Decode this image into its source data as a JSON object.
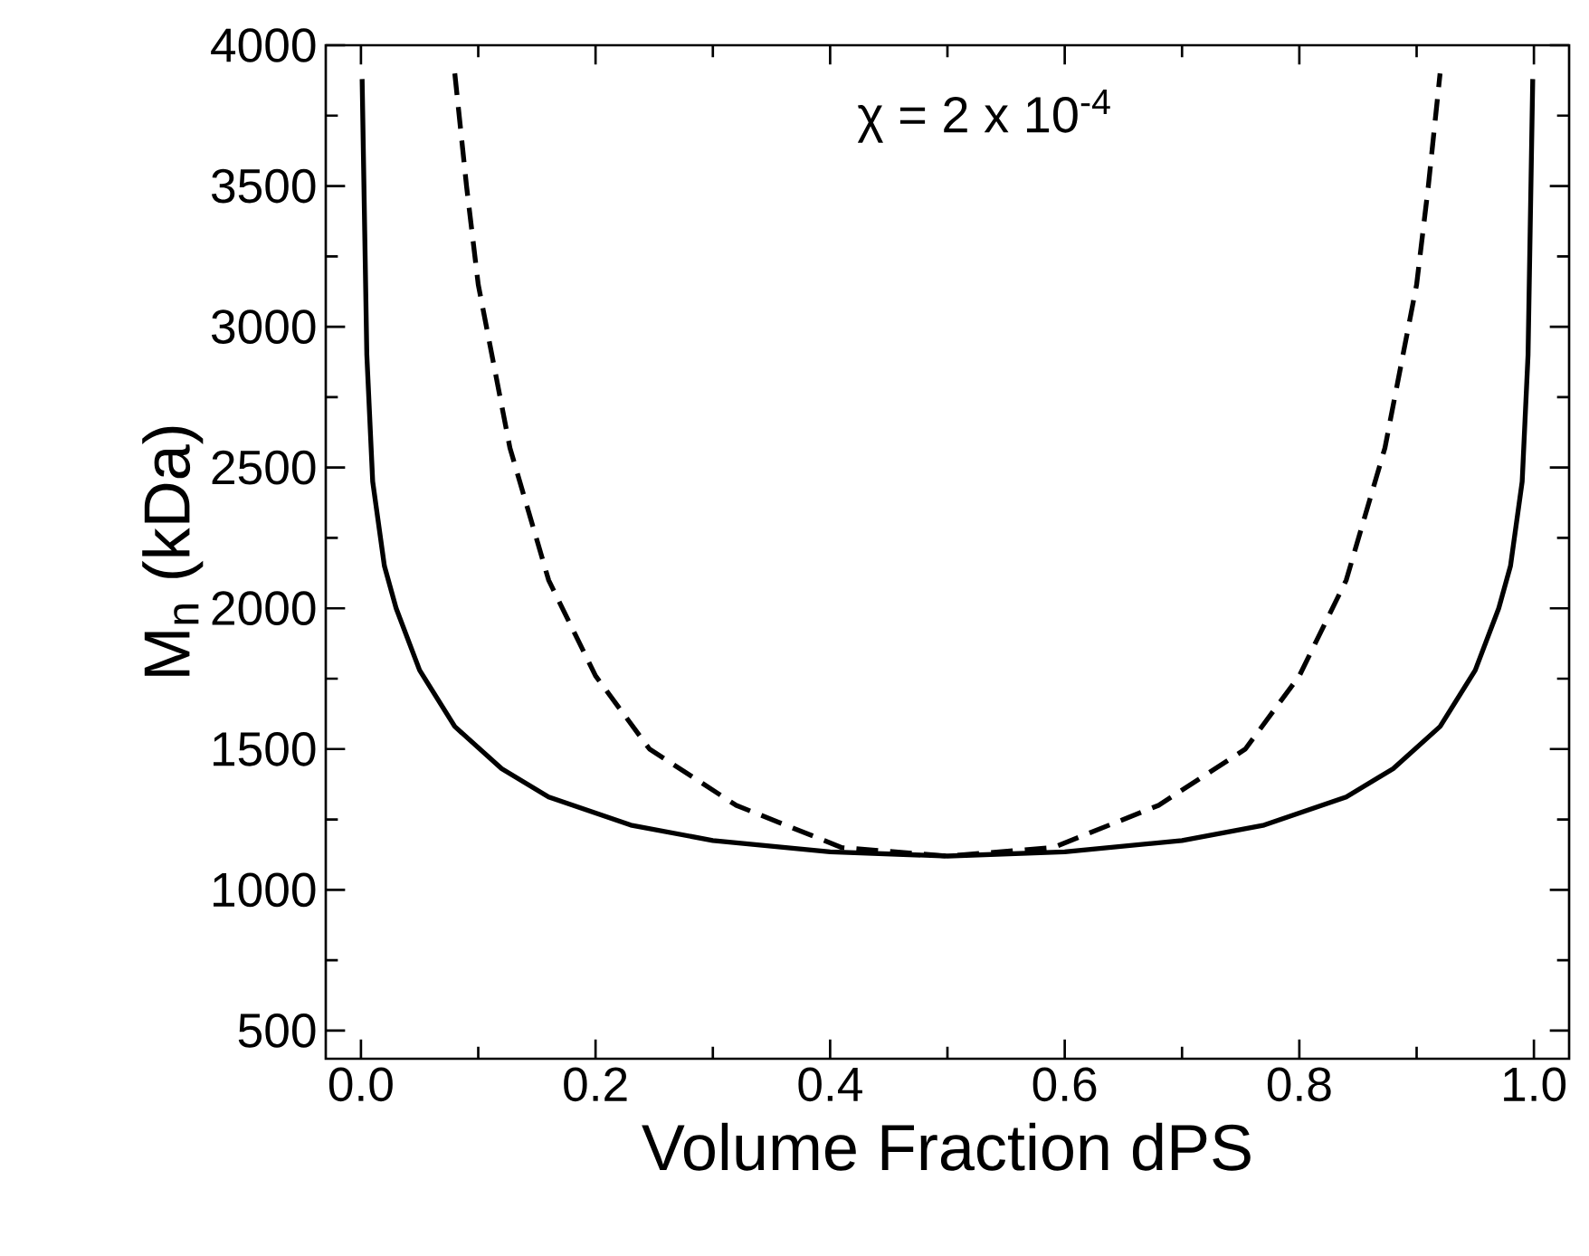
{
  "chart_data": {
    "type": "line",
    "xlabel": "Volume Fraction dPS",
    "ylabel": "M$_{n}$ (kDa)",
    "annotations": [
      "χ = 2 x 10$^{-4}$"
    ],
    "series": [
      {
        "color": "#000000",
        "line_style": "solid",
        "x": [
          0.001,
          0.005,
          0.01,
          0.02,
          0.03,
          0.05,
          0.08,
          0.12,
          0.16,
          0.23,
          0.3,
          0.4,
          0.5,
          0.6,
          0.7,
          0.77,
          0.84,
          0.88,
          0.92,
          0.95,
          0.97,
          0.98,
          0.99,
          0.995,
          0.999
        ],
        "values": [
          3880,
          2900,
          2450,
          2150,
          2000,
          1780,
          1580,
          1430,
          1330,
          1230,
          1175,
          1135,
          1120,
          1135,
          1175,
          1230,
          1330,
          1430,
          1580,
          1780,
          2000,
          2150,
          2450,
          2900,
          3880
        ]
      },
      {
        "color": "#000000",
        "line_style": "dashed",
        "x": [
          0.08,
          0.09,
          0.1,
          0.127,
          0.16,
          0.2,
          0.246,
          0.32,
          0.41,
          0.5,
          0.59,
          0.68,
          0.754,
          0.8,
          0.84,
          0.873,
          0.9,
          0.91,
          0.92
        ],
        "values": [
          3900,
          3500,
          3150,
          2570,
          2100,
          1760,
          1500,
          1300,
          1150,
          1120,
          1150,
          1300,
          1500,
          1760,
          2100,
          2570,
          3150,
          3500,
          3900
        ]
      }
    ],
    "xlim": [
      -0.03,
      1.03
    ],
    "ylim": [
      400,
      4000
    ],
    "xticks": [
      {
        "value": 0,
        "label": "0.0"
      },
      0.2,
      0.4,
      0.6,
      0.8,
      {
        "value": 1,
        "label": "1.0"
      }
    ],
    "yticks": [
      500,
      1000,
      1500,
      2000,
      2500,
      3000,
      3500,
      4000
    ],
    "grid": false,
    "marker": "none"
  }
}
